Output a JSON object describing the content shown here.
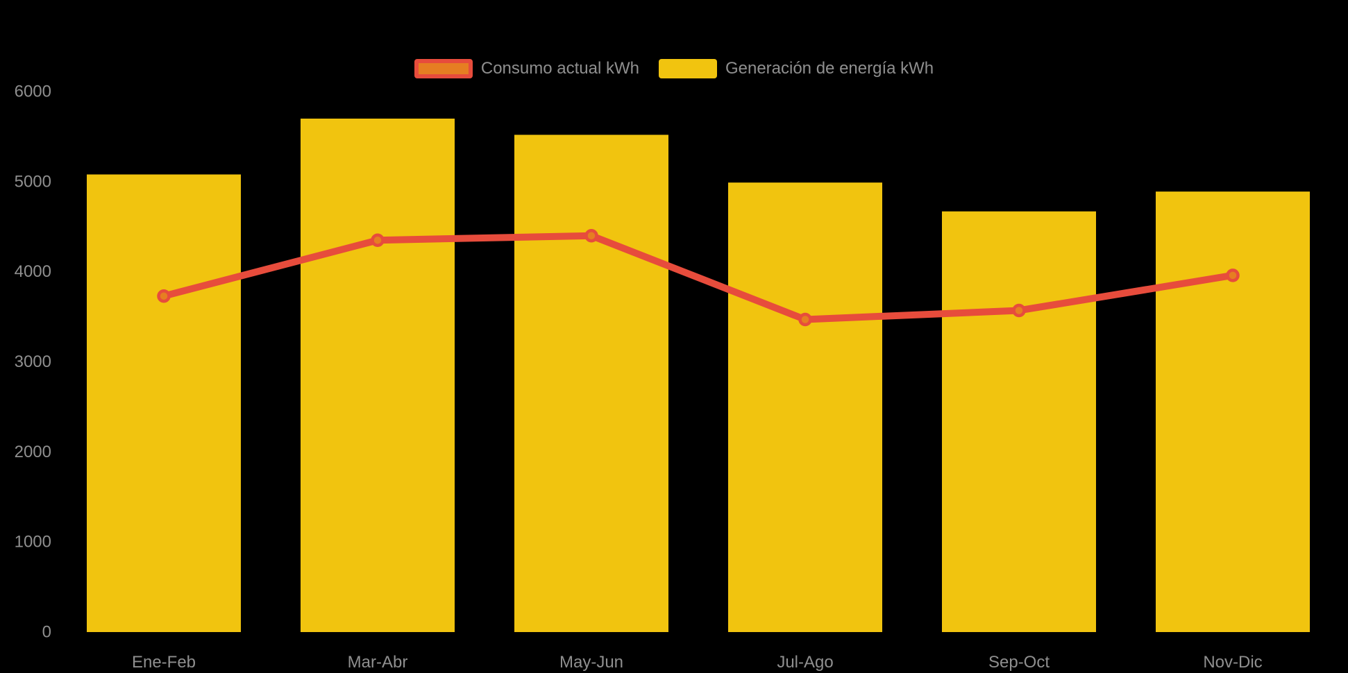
{
  "chart_data": {
    "type": "bar",
    "subtype": "bar-with-line-overlay",
    "categories": [
      "Ene-Feb",
      "Mar-Abr",
      "May-Jun",
      "Jul-Ago",
      "Sep-Oct",
      "Nov-Dic"
    ],
    "series": [
      {
        "name": "Generación de energía kWh",
        "type": "bar",
        "color": "#F1C40F",
        "values": [
          5080,
          5700,
          5520,
          4990,
          4670,
          4890
        ]
      },
      {
        "name": "Consumo actual kWh",
        "type": "line",
        "color": "#E74C3C",
        "point_fill": "#E67E22",
        "values": [
          3730,
          4350,
          4400,
          3470,
          3570,
          3960
        ]
      }
    ],
    "title": "",
    "xlabel": "",
    "ylabel": "",
    "ylim": [
      0,
      6000
    ],
    "yticks": [
      0,
      1000,
      2000,
      3000,
      4000,
      5000,
      6000
    ],
    "grid": false,
    "legend_position": "top-center",
    "background_color": "#000000",
    "axis_text_color": "#8f8f8f"
  }
}
